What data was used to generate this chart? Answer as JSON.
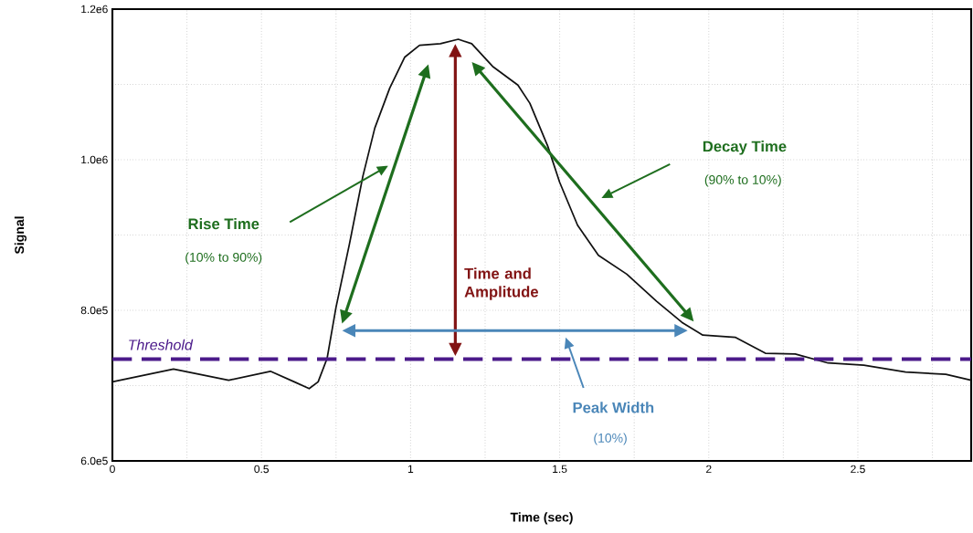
{
  "chart_data": {
    "type": "line",
    "xlabel": "Time (sec)",
    "ylabel": "Signal",
    "x": [
      0,
      0.205,
      0.39,
      0.53,
      0.61,
      0.66,
      0.69,
      0.72,
      0.75,
      0.795,
      0.84,
      0.88,
      0.93,
      0.98,
      1.03,
      1.1,
      1.16,
      1.205,
      1.275,
      1.36,
      1.4,
      1.46,
      1.5,
      1.56,
      1.63,
      1.725,
      1.825,
      1.91,
      1.98,
      2.09,
      2.19,
      2.29,
      2.4,
      2.52,
      2.66,
      2.795,
      2.88
    ],
    "series": [
      {
        "color": "#111111",
        "values": [
          705000,
          722000,
          707000,
          719000,
          705000,
          696000,
          705000,
          736000,
          804000,
          888000,
          978000,
          1042000,
          1095000,
          1136000,
          1152000,
          1154000,
          1160000,
          1154000,
          1124000,
          1099000,
          1075000,
          1018000,
          970000,
          913000,
          873000,
          848000,
          812000,
          784000,
          767000,
          764000,
          743000,
          742000,
          730000,
          727000,
          718000,
          715000,
          707000
        ]
      }
    ],
    "xlim": [
      0,
      2.88
    ],
    "ylim": [
      600000,
      1200000
    ],
    "xticks": [
      0,
      {
        "value": 0.25,
        "label": null
      },
      0.5,
      {
        "value": 0.75,
        "label": null
      },
      1,
      {
        "value": 1.25,
        "label": null
      },
      1.5,
      {
        "value": 1.75,
        "label": null
      },
      2,
      {
        "value": 2.25,
        "label": null
      },
      2.5,
      {
        "value": 2.75,
        "label": null
      }
    ],
    "yticks": [
      {
        "value": 600000,
        "label": "6.0e5"
      },
      {
        "value": 700000,
        "label": null
      },
      {
        "value": 800000,
        "label": "8.0e5"
      },
      {
        "value": 900000,
        "label": null
      },
      {
        "value": 1000000,
        "label": "1.0e6"
      },
      {
        "value": 1100000,
        "label": null
      },
      {
        "value": 1200000,
        "label": "1.2e6"
      }
    ],
    "grid": true,
    "marker": "none",
    "line_style": "solid",
    "legend": false,
    "ref_lines": [
      {
        "axis": "y",
        "value": 735000,
        "label": "Threshold",
        "color": "#4b1a8a",
        "line_style": "dashed"
      }
    ],
    "annotations": [
      "Rise Time",
      "(10% to 90%)",
      "Decay Time",
      "(90% to 10%)",
      "Time and Amplitude",
      "Peak Width",
      "(10%)"
    ]
  }
}
